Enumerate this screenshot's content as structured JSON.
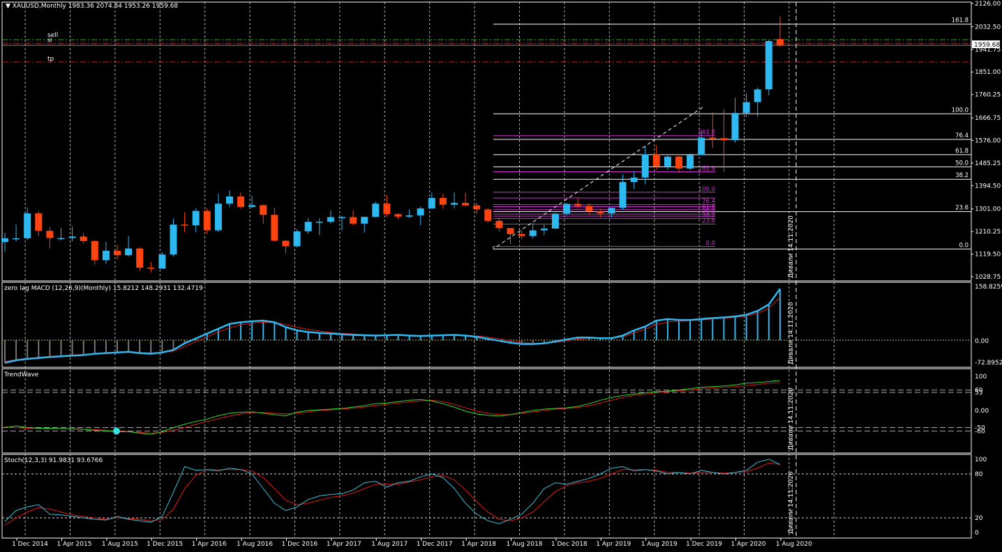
{
  "main": {
    "symbol_menu_arrow": "triangle-down-icon",
    "header": "XAUUSD,Monthly  1983.36 2074.84 1953.26 1959.68",
    "price_labels": [
      "2126.00",
      "2032.50",
      "1941.75",
      "1851.00",
      "1760.25",
      "1666.75",
      "1576.00",
      "1485.25",
      "1394.50",
      "1301.00",
      "1210.25",
      "1119.50",
      "1028.75"
    ],
    "current_price": "1959.68",
    "order_lines": {
      "sell": "sell",
      "sl": "sl",
      "tp": "tp"
    },
    "vertical_label": "Дивали 14.11.2020",
    "fib_white": [
      "161.8",
      "100.0",
      "76.4",
      "61.8",
      "50.0",
      "38.2",
      "23.6",
      "0.0"
    ],
    "fib_magenta": [
      "261.8",
      "161.8",
      "100.0",
      "76.4",
      "61.8",
      "50.0",
      "38.2",
      "23.6",
      "0.0"
    ]
  },
  "macd": {
    "header": "zero lag MACD (12,26,9)(Monthly) 15.8212 148.2931 132.4719",
    "scale": [
      "158.8259",
      "0.00",
      "-72.8952"
    ]
  },
  "trendwave": {
    "header": "TrendWave",
    "scale": [
      "100",
      "60",
      "53",
      "0.00",
      "-50",
      "-60"
    ]
  },
  "stoch": {
    "header": "Stoch(12,3,3) 91.9831 93.6766",
    "scale": [
      "100",
      "80",
      "20",
      "0"
    ]
  },
  "time_axis": [
    "1 Dec 2014",
    "1 Apr 2015",
    "1 Aug 2015",
    "1 Dec 2015",
    "1 Apr 2016",
    "1 Aug 2016",
    "1 Dec 2016",
    "1 Apr 2017",
    "1 Aug 2017",
    "1 Dec 2017",
    "1 Apr 2018",
    "1 Aug 2018",
    "1 Dec 2018",
    "1 Apr 2019",
    "1 Aug 2019",
    "1 Dec 2019",
    "1 Apr 2020",
    "1 Aug 2020"
  ],
  "colors": {
    "bull": "#2eb8f0",
    "bear": "#ff4411",
    "grid": "#c8c8c8",
    "fib_white": "#ffffff",
    "fib_magenta": "#d030d0",
    "sell": "#3aa83a",
    "sl_tp": "#e01818",
    "macd_signal": "#e01818",
    "tw_green": "#2edc2e",
    "tw_red": "#e01818",
    "stoch_main": "#3bbfd8",
    "stoch_signal": "#e01818"
  },
  "chart_data": {
    "type": "candlestick",
    "title": "XAUUSD,Monthly",
    "ylim": [
      1028.75,
      2126.0
    ],
    "x": [
      "2014-11",
      "2014-12",
      "2015-01",
      "2015-02",
      "2015-03",
      "2015-04",
      "2015-05",
      "2015-06",
      "2015-07",
      "2015-08",
      "2015-09",
      "2015-10",
      "2015-11",
      "2015-12",
      "2016-01",
      "2016-02",
      "2016-03",
      "2016-04",
      "2016-05",
      "2016-06",
      "2016-07",
      "2016-08",
      "2016-09",
      "2016-10",
      "2016-11",
      "2016-12",
      "2017-01",
      "2017-02",
      "2017-03",
      "2017-04",
      "2017-05",
      "2017-06",
      "2017-07",
      "2017-08",
      "2017-09",
      "2017-10",
      "2017-11",
      "2017-12",
      "2018-01",
      "2018-02",
      "2018-03",
      "2018-04",
      "2018-05",
      "2018-06",
      "2018-07",
      "2018-08",
      "2018-09",
      "2018-10",
      "2018-11",
      "2018-12",
      "2019-01",
      "2019-02",
      "2019-03",
      "2019-04",
      "2019-05",
      "2019-06",
      "2019-07",
      "2019-08",
      "2019-09",
      "2019-10",
      "2019-11",
      "2019-12",
      "2020-01",
      "2020-02",
      "2020-03",
      "2020-04",
      "2020-05",
      "2020-06",
      "2020-07",
      "2020-08"
    ],
    "ohlc": [
      [
        1168,
        1205,
        1130,
        1183
      ],
      [
        1183,
        1238,
        1170,
        1183
      ],
      [
        1183,
        1307,
        1175,
        1283
      ],
      [
        1283,
        1292,
        1192,
        1213
      ],
      [
        1213,
        1228,
        1142,
        1184
      ],
      [
        1184,
        1225,
        1175,
        1184
      ],
      [
        1184,
        1232,
        1171,
        1190
      ],
      [
        1190,
        1205,
        1162,
        1172
      ],
      [
        1172,
        1175,
        1077,
        1095
      ],
      [
        1095,
        1170,
        1080,
        1133
      ],
      [
        1133,
        1157,
        1098,
        1115
      ],
      [
        1115,
        1192,
        1110,
        1142
      ],
      [
        1142,
        1146,
        1053,
        1065
      ],
      [
        1065,
        1088,
        1046,
        1061
      ],
      [
        1061,
        1128,
        1063,
        1118
      ],
      [
        1118,
        1263,
        1110,
        1238
      ],
      [
        1238,
        1287,
        1208,
        1235
      ],
      [
        1235,
        1303,
        1208,
        1293
      ],
      [
        1293,
        1304,
        1200,
        1215
      ],
      [
        1215,
        1362,
        1208,
        1322
      ],
      [
        1322,
        1375,
        1310,
        1351
      ],
      [
        1351,
        1367,
        1302,
        1309
      ],
      [
        1309,
        1353,
        1305,
        1316
      ],
      [
        1316,
        1318,
        1242,
        1277
      ],
      [
        1277,
        1306,
        1170,
        1173
      ],
      [
        1173,
        1175,
        1122,
        1151
      ],
      [
        1151,
        1220,
        1146,
        1211
      ],
      [
        1211,
        1264,
        1200,
        1249
      ],
      [
        1249,
        1263,
        1196,
        1249
      ],
      [
        1249,
        1295,
        1242,
        1268
      ],
      [
        1268,
        1273,
        1214,
        1268
      ],
      [
        1268,
        1295,
        1236,
        1242
      ],
      [
        1242,
        1270,
        1205,
        1269
      ],
      [
        1269,
        1330,
        1268,
        1322
      ],
      [
        1322,
        1357,
        1268,
        1280
      ],
      [
        1280,
        1283,
        1260,
        1270
      ],
      [
        1270,
        1298,
        1265,
        1275
      ],
      [
        1275,
        1310,
        1236,
        1303
      ],
      [
        1303,
        1366,
        1302,
        1345
      ],
      [
        1345,
        1362,
        1302,
        1318
      ],
      [
        1318,
        1366,
        1303,
        1325
      ],
      [
        1325,
        1366,
        1315,
        1315
      ],
      [
        1315,
        1326,
        1281,
        1299
      ],
      [
        1299,
        1303,
        1246,
        1253
      ],
      [
        1253,
        1265,
        1211,
        1224
      ],
      [
        1224,
        1215,
        1160,
        1200
      ],
      [
        1200,
        1214,
        1180,
        1192
      ],
      [
        1192,
        1243,
        1182,
        1215
      ],
      [
        1215,
        1237,
        1196,
        1222
      ],
      [
        1222,
        1285,
        1221,
        1282
      ],
      [
        1282,
        1326,
        1276,
        1321
      ],
      [
        1321,
        1347,
        1302,
        1313
      ],
      [
        1313,
        1324,
        1281,
        1292
      ],
      [
        1292,
        1301,
        1266,
        1283
      ],
      [
        1283,
        1307,
        1266,
        1305
      ],
      [
        1305,
        1439,
        1296,
        1409
      ],
      [
        1409,
        1453,
        1382,
        1427
      ],
      [
        1427,
        1555,
        1400,
        1520
      ],
      [
        1520,
        1557,
        1459,
        1472
      ],
      [
        1472,
        1516,
        1458,
        1511
      ],
      [
        1511,
        1514,
        1445,
        1463
      ],
      [
        1463,
        1524,
        1456,
        1517
      ],
      [
        1517,
        1611,
        1517,
        1587
      ],
      [
        1587,
        1689,
        1547,
        1585
      ],
      [
        1585,
        1703,
        1451,
        1577
      ],
      [
        1577,
        1747,
        1567,
        1686
      ],
      [
        1686,
        1765,
        1670,
        1730
      ],
      [
        1730,
        1789,
        1671,
        1781
      ],
      [
        1781,
        1981,
        1757,
        1975
      ],
      [
        1983,
        2074,
        1953,
        1959
      ]
    ]
  }
}
